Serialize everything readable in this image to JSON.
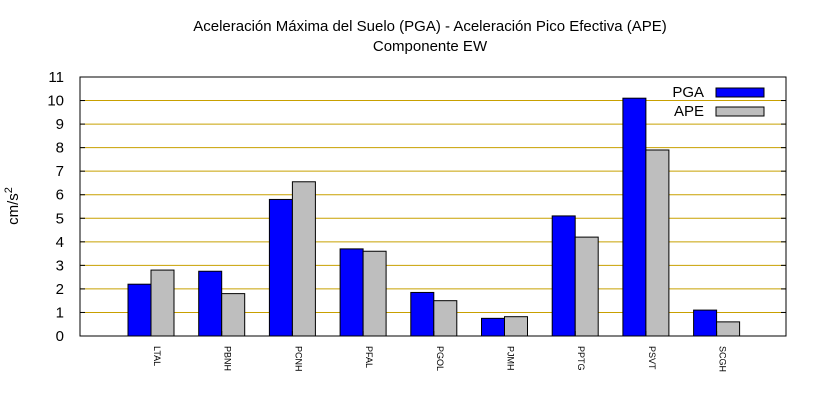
{
  "chart_data": {
    "type": "bar",
    "title_line1": "Aceleración Máxima del Suelo (PGA) -  Aceleración Pico Efectiva (APE)",
    "title_line2": "Componente EW",
    "ylabel_base": "cm/s",
    "ylabel_exp": "2",
    "xlabel": "",
    "ylim": [
      0,
      11
    ],
    "yticks": [
      0,
      1,
      2,
      3,
      4,
      5,
      6,
      7,
      8,
      9,
      10,
      11
    ],
    "grid": true,
    "legend_position": "top-right",
    "categories": [
      "LTAL",
      "PBNH",
      "PCNH",
      "PFAL",
      "PGOL",
      "PJMH",
      "PPTG",
      "PSVT",
      "SCGH"
    ],
    "series": [
      {
        "name": "PGA",
        "color": "#0000ff",
        "values": [
          2.2,
          2.75,
          5.8,
          3.7,
          1.85,
          0.75,
          5.1,
          10.1,
          1.1
        ]
      },
      {
        "name": "APE",
        "color": "#bebebe",
        "values": [
          2.8,
          1.8,
          6.55,
          3.6,
          1.5,
          0.82,
          4.2,
          7.9,
          0.6
        ]
      }
    ],
    "grid_color": "#c8a000"
  }
}
